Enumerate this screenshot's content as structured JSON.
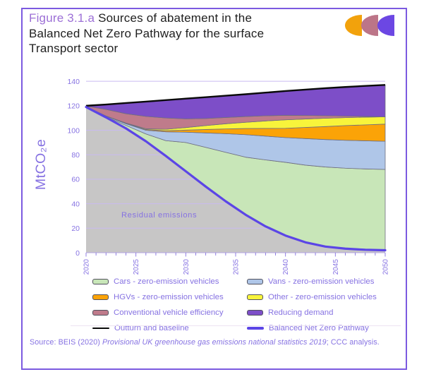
{
  "title": {
    "figure_label": "Figure 3.1.a",
    "line1": "Sources of abatement in the",
    "line2": "Balanced Net Zero Pathway for the surface",
    "line3": "Transport sector"
  },
  "logo": {
    "name": "ccc-logo",
    "crescent_colors": [
      "#F2A20C",
      "#BC7588",
      "#6C47E3"
    ]
  },
  "chart_data": {
    "type": "area",
    "stacked": true,
    "ylabel": "MtCO₂e",
    "annotation": "Residual emissions",
    "xlim": [
      2020,
      2050
    ],
    "ylim": [
      0,
      140
    ],
    "yticks": [
      0,
      20,
      40,
      60,
      80,
      100,
      120,
      140
    ],
    "xticks": [
      2020,
      2025,
      2030,
      2035,
      2040,
      2045,
      2050
    ],
    "grid": true,
    "legend_position": "bottom",
    "x_years": [
      2020,
      2022,
      2024,
      2026,
      2028,
      2030,
      2032,
      2034,
      2036,
      2038,
      2040,
      2042,
      2044,
      2046,
      2048,
      2050
    ],
    "units": "MtCO2e",
    "pathway": {
      "name": "Balanced Net Zero Pathway",
      "values": [
        119,
        110.5,
        101.5,
        91,
        79,
        66.5,
        54,
        42,
        31,
        21.5,
        14,
        8.5,
        5,
        3.3,
        2.4,
        2
      ]
    },
    "baseline": {
      "name": "Outturn and baseline",
      "values": [
        120,
        121,
        122.2,
        123.4,
        124.6,
        125.8,
        127,
        128.2,
        129.4,
        130.7,
        132,
        133.2,
        134.3,
        135.3,
        136.2,
        137
      ]
    },
    "series": [
      {
        "name": "Cars - zero-emission vehicles",
        "key": "cars",
        "values": [
          0.2,
          0.5,
          2.5,
          6,
          12.5,
          23.5,
          32,
          40,
          47,
          54.3,
          59.8,
          63,
          65,
          65.7,
          66,
          66
        ]
      },
      {
        "name": "Vans - zero-emission vehicles",
        "key": "vans",
        "values": [
          0.1,
          0.5,
          1.3,
          3,
          7.2,
          8.4,
          11.8,
          15.2,
          18.4,
          19.4,
          20.2,
          21.7,
          22.4,
          22.8,
          23,
          23
        ]
      },
      {
        "name": "HGVs - zero-emission vehicles",
        "key": "hgvs",
        "values": [
          0,
          0.1,
          0.3,
          0.6,
          0.9,
          1.7,
          2.8,
          3.9,
          5,
          6.3,
          7.6,
          9.1,
          10.6,
          12,
          13,
          14
        ]
      },
      {
        "name": "Other - zero-emission vehicles",
        "key": "other",
        "values": [
          0,
          0.1,
          0.3,
          0.6,
          1.2,
          2.1,
          3.2,
          4.2,
          5.1,
          6.1,
          6.9,
          6.9,
          6.8,
          6.5,
          6.3,
          6
        ]
      },
      {
        "name": "Conventional vehicle efficiency",
        "key": "conv",
        "values": [
          0.4,
          5.3,
          7.6,
          10.1,
          9.2,
          7.1,
          5.8,
          5.1,
          4.7,
          4.2,
          3.7,
          2.9,
          2.1,
          1.3,
          0.6,
          0
        ]
      },
      {
        "name": "Reducing demand",
        "key": "demand",
        "values": [
          0.3,
          4,
          8.7,
          12.1,
          14.6,
          16.5,
          17.4,
          17.8,
          18.2,
          18.9,
          19.8,
          21.1,
          22.4,
          23.7,
          24.9,
          26
        ]
      }
    ]
  },
  "legend": {
    "items": [
      {
        "label": "Cars - zero-emission vehicles",
        "swatch": "area",
        "color": "#C8E6B8"
      },
      {
        "label": "Vans - zero-emission vehicles",
        "swatch": "area",
        "color": "#AFC6E8"
      },
      {
        "label": "HGVs - zero-emission vehicles",
        "swatch": "area",
        "color": "#FBA307"
      },
      {
        "label": "Other - zero-emission vehicles",
        "swatch": "area",
        "color": "#F8F43B"
      },
      {
        "label": "Conventional vehicle efficiency",
        "swatch": "area",
        "color": "#BF7B8B"
      },
      {
        "label": "Reducing demand",
        "swatch": "area",
        "color": "#7D4EC8"
      },
      {
        "label": "Outturn and baseline",
        "swatch": "line",
        "color": "#0A0A0A"
      },
      {
        "label": "Balanced Net Zero Pathway",
        "swatch": "line",
        "color": "#5B45E6"
      }
    ]
  },
  "source": {
    "prefix": "Source: BEIS (2020) ",
    "italic": "Provisional UK greenhouse gas emissions national statistics 2019",
    "suffix": "; CCC analysis."
  },
  "colors": {
    "border": "#7C5AE0",
    "figure_label": "#9C6FD6",
    "title_text": "#1F1F1F",
    "accent_text": "#8672E2",
    "gridline": "#C9BAF0",
    "axis_line": "#B3A6E0",
    "band_stroke": "#6E6E80",
    "residual_fill": "#C7C6C6",
    "cars": "#C8E6B8",
    "vans": "#AFC6E8",
    "hgvs": "#FBA307",
    "other": "#F8F43B",
    "conv": "#BF7B8B",
    "demand": "#7D4EC8",
    "outturn": "#0A0A0A",
    "pathway": "#5B45E6"
  }
}
